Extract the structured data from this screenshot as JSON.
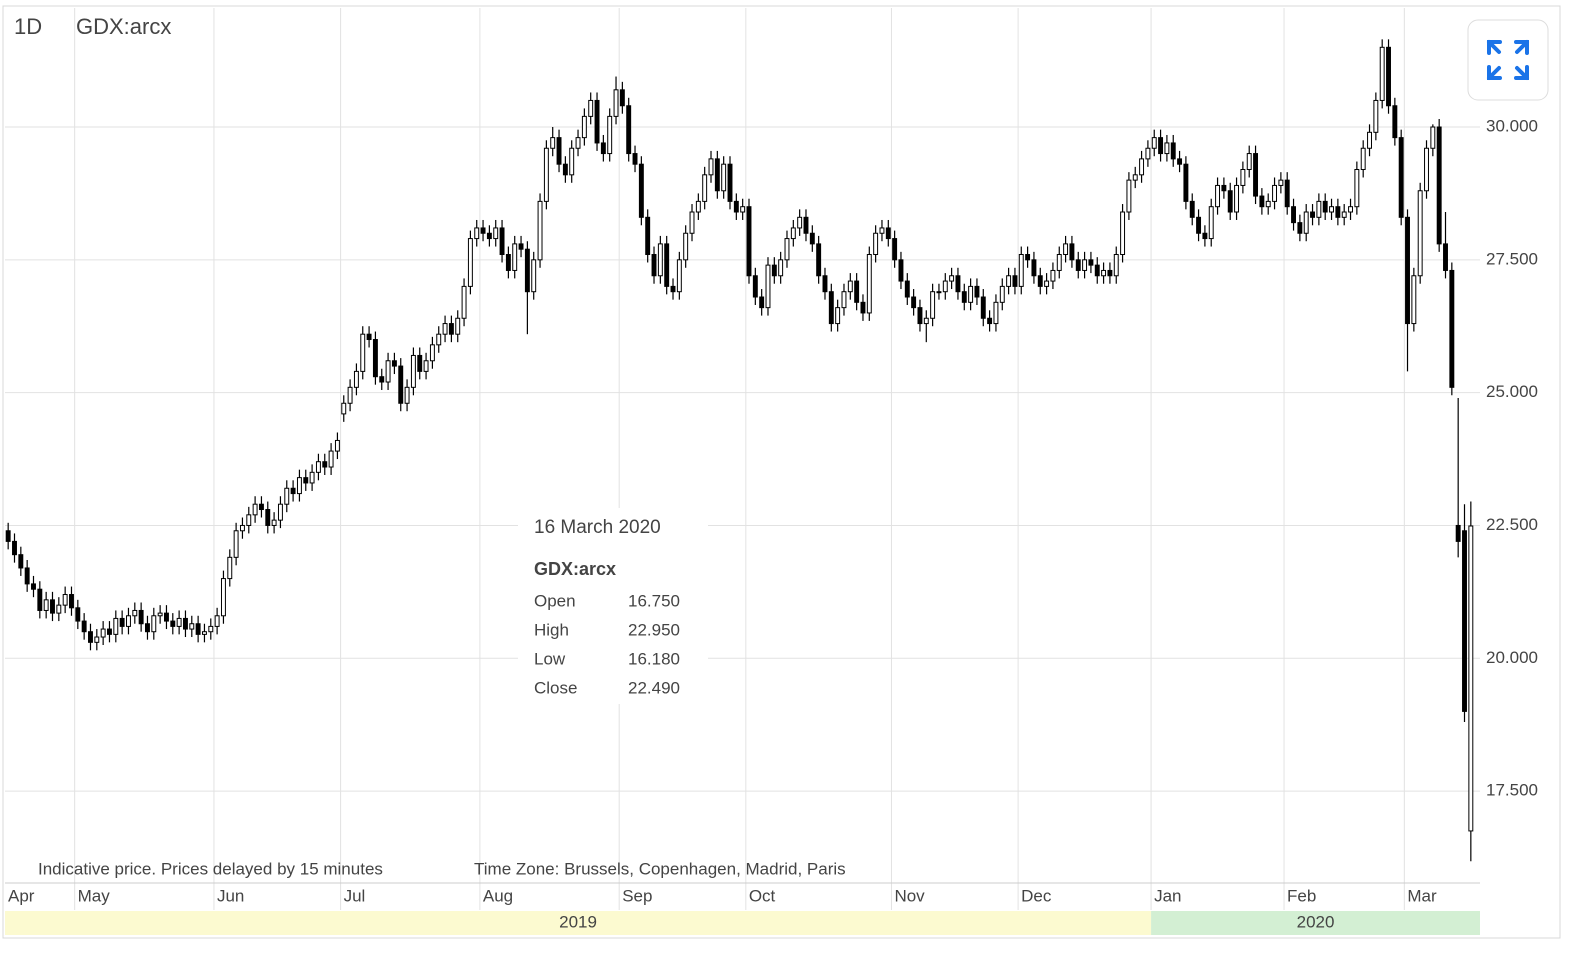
{
  "header": {
    "interval": "1D",
    "symbol": "GDX:arcx"
  },
  "notes": [
    "Indicative price. Prices delayed by 15 minutes",
    "Time Zone: Brussels, Copenhagen, Madrid, Paris"
  ],
  "tooltip": {
    "date": "16 March 2020",
    "symbol": "GDX:arcx",
    "rows": [
      {
        "label": "Open",
        "value": "16.750"
      },
      {
        "label": "High",
        "value": "22.950"
      },
      {
        "label": "Low",
        "value": "16.180"
      },
      {
        "label": "Close",
        "value": "22.490"
      }
    ]
  },
  "chart_data": {
    "type": "candlestick",
    "name": "GDX:arcx",
    "up_color": "#ffffff",
    "down_color": "#000000",
    "wick_color": "#000000",
    "ylim": [
      15.77,
      32.24
    ],
    "yticks": [
      {
        "value": 17.5,
        "label": "17.500"
      },
      {
        "value": 20,
        "label": "20.000"
      },
      {
        "value": 22.5,
        "label": "22.500"
      },
      {
        "value": 25,
        "label": "25.000"
      },
      {
        "value": 27.5,
        "label": "27.500"
      },
      {
        "value": 30,
        "label": "30.000"
      }
    ],
    "xticks": [
      {
        "value": 0,
        "label": "Apr"
      },
      {
        "value": 11,
        "label": "May"
      },
      {
        "value": 33,
        "label": "Jun"
      },
      {
        "value": 53,
        "label": "Jul"
      },
      {
        "value": 75,
        "label": "Aug"
      },
      {
        "value": 97,
        "label": "Sep"
      },
      {
        "value": 117,
        "label": "Oct"
      },
      {
        "value": 140,
        "label": "Nov"
      },
      {
        "value": 160,
        "label": "Dec"
      },
      {
        "value": 181,
        "label": "Jan"
      },
      {
        "value": 202,
        "label": "Feb"
      },
      {
        "value": 221,
        "label": "Mar"
      }
    ],
    "years": [
      {
        "value": 0,
        "label": "2019"
      },
      {
        "value": 181,
        "label": "2020"
      }
    ],
    "grid": true,
    "ohlc": [
      [
        22.4,
        22.55,
        22.05,
        22.2
      ],
      [
        22.2,
        22.35,
        21.8,
        21.95
      ],
      [
        21.95,
        22.1,
        21.55,
        21.7
      ],
      [
        21.7,
        21.85,
        21.25,
        21.4
      ],
      [
        21.4,
        21.55,
        21.15,
        21.3
      ],
      [
        21.3,
        21.45,
        20.75,
        20.9
      ],
      [
        20.9,
        21.25,
        20.75,
        21.1
      ],
      [
        21.1,
        21.25,
        20.7,
        20.85
      ],
      [
        20.85,
        21.15,
        20.7,
        21.0
      ],
      [
        21.0,
        21.35,
        20.85,
        21.2
      ],
      [
        21.2,
        21.35,
        20.8,
        20.95
      ],
      [
        20.95,
        21.1,
        20.55,
        20.7
      ],
      [
        20.7,
        20.85,
        20.35,
        20.5
      ],
      [
        20.5,
        20.65,
        20.15,
        20.3
      ],
      [
        20.3,
        20.55,
        20.15,
        20.4
      ],
      [
        20.4,
        20.7,
        20.25,
        20.55
      ],
      [
        20.55,
        20.7,
        20.3,
        20.45
      ],
      [
        20.45,
        20.9,
        20.3,
        20.75
      ],
      [
        20.75,
        20.9,
        20.45,
        20.6
      ],
      [
        20.6,
        20.95,
        20.45,
        20.8
      ],
      [
        20.8,
        21.05,
        20.65,
        20.9
      ],
      [
        20.9,
        21.05,
        20.5,
        20.65
      ],
      [
        20.65,
        20.8,
        20.35,
        20.5
      ],
      [
        20.5,
        20.95,
        20.35,
        20.8
      ],
      [
        20.8,
        21.0,
        20.65,
        20.85
      ],
      [
        20.85,
        21.0,
        20.55,
        20.7
      ],
      [
        20.7,
        20.85,
        20.45,
        20.6
      ],
      [
        20.6,
        20.9,
        20.45,
        20.75
      ],
      [
        20.75,
        20.9,
        20.4,
        20.55
      ],
      [
        20.55,
        20.8,
        20.4,
        20.65
      ],
      [
        20.65,
        20.8,
        20.3,
        20.45
      ],
      [
        20.45,
        20.65,
        20.3,
        20.5
      ],
      [
        20.5,
        20.75,
        20.35,
        20.6
      ],
      [
        20.6,
        20.95,
        20.45,
        20.8
      ],
      [
        20.8,
        21.65,
        20.65,
        21.5
      ],
      [
        21.5,
        22.05,
        21.35,
        21.9
      ],
      [
        21.9,
        22.55,
        21.75,
        22.4
      ],
      [
        22.4,
        22.65,
        22.25,
        22.5
      ],
      [
        22.5,
        22.85,
        22.35,
        22.7
      ],
      [
        22.7,
        23.05,
        22.55,
        22.9
      ],
      [
        22.9,
        23.05,
        22.65,
        22.8
      ],
      [
        22.8,
        22.95,
        22.35,
        22.5
      ],
      [
        22.5,
        22.75,
        22.35,
        22.6
      ],
      [
        22.6,
        23.05,
        22.45,
        22.9
      ],
      [
        22.9,
        23.35,
        22.75,
        23.2
      ],
      [
        23.2,
        23.35,
        22.95,
        23.1
      ],
      [
        23.1,
        23.55,
        22.95,
        23.4
      ],
      [
        23.4,
        23.55,
        23.15,
        23.3
      ],
      [
        23.3,
        23.65,
        23.15,
        23.5
      ],
      [
        23.5,
        23.85,
        23.35,
        23.7
      ],
      [
        23.7,
        23.85,
        23.45,
        23.6
      ],
      [
        23.6,
        24.05,
        23.45,
        23.9
      ],
      [
        23.9,
        24.25,
        23.75,
        24.1
      ],
      [
        24.6,
        24.95,
        24.45,
        24.8
      ],
      [
        24.8,
        25.25,
        24.65,
        25.1
      ],
      [
        25.1,
        25.55,
        24.95,
        25.4
      ],
      [
        25.4,
        26.25,
        25.25,
        26.1
      ],
      [
        26.1,
        26.25,
        25.85,
        26.0
      ],
      [
        26.0,
        26.15,
        25.15,
        25.3
      ],
      [
        25.3,
        25.45,
        25.05,
        25.2
      ],
      [
        25.2,
        25.75,
        25.05,
        25.6
      ],
      [
        25.6,
        25.75,
        25.35,
        25.5
      ],
      [
        25.5,
        25.65,
        24.65,
        24.8
      ],
      [
        24.8,
        25.25,
        24.65,
        25.1
      ],
      [
        25.1,
        25.85,
        24.95,
        25.7
      ],
      [
        25.7,
        25.85,
        25.25,
        25.4
      ],
      [
        25.4,
        25.75,
        25.25,
        25.6
      ],
      [
        25.6,
        26.05,
        25.45,
        25.9
      ],
      [
        25.9,
        26.25,
        25.75,
        26.1
      ],
      [
        26.1,
        26.45,
        25.95,
        26.3
      ],
      [
        26.3,
        26.45,
        25.95,
        26.1
      ],
      [
        26.1,
        26.55,
        25.95,
        26.4
      ],
      [
        26.4,
        27.15,
        26.25,
        27.0
      ],
      [
        27.0,
        28.05,
        26.85,
        27.9
      ],
      [
        27.9,
        28.25,
        27.75,
        28.1
      ],
      [
        28.1,
        28.25,
        27.85,
        28.0
      ],
      [
        28.0,
        28.15,
        27.75,
        27.9
      ],
      [
        27.9,
        28.25,
        27.75,
        28.1
      ],
      [
        28.1,
        28.25,
        27.45,
        27.6
      ],
      [
        27.6,
        27.75,
        27.15,
        27.3
      ],
      [
        27.3,
        27.95,
        27.15,
        27.8
      ],
      [
        27.8,
        27.95,
        27.55,
        27.7
      ],
      [
        27.7,
        27.85,
        26.1,
        26.9
      ],
      [
        26.9,
        27.65,
        26.75,
        27.5
      ],
      [
        27.5,
        28.75,
        27.35,
        28.6
      ],
      [
        28.6,
        29.75,
        28.45,
        29.6
      ],
      [
        29.6,
        30.0,
        29.45,
        29.8
      ],
      [
        29.8,
        29.95,
        29.15,
        29.3
      ],
      [
        29.3,
        29.45,
        28.95,
        29.1
      ],
      [
        29.1,
        29.75,
        28.95,
        29.6
      ],
      [
        29.6,
        29.95,
        29.45,
        29.8
      ],
      [
        29.8,
        30.35,
        29.65,
        30.2
      ],
      [
        30.2,
        30.65,
        30.05,
        30.5
      ],
      [
        30.5,
        30.65,
        29.55,
        29.7
      ],
      [
        29.7,
        29.85,
        29.35,
        29.5
      ],
      [
        29.5,
        30.35,
        29.35,
        30.2
      ],
      [
        30.2,
        30.95,
        30.05,
        30.7
      ],
      [
        30.7,
        30.85,
        30.25,
        30.4
      ],
      [
        30.4,
        30.55,
        29.35,
        29.5
      ],
      [
        29.5,
        29.65,
        29.15,
        29.3
      ],
      [
        29.3,
        29.45,
        28.15,
        28.3
      ],
      [
        28.3,
        28.45,
        27.45,
        27.6
      ],
      [
        27.6,
        27.75,
        27.05,
        27.2
      ],
      [
        27.2,
        27.95,
        27.05,
        27.8
      ],
      [
        27.8,
        27.95,
        26.85,
        27.0
      ],
      [
        27.0,
        27.15,
        26.75,
        26.9
      ],
      [
        26.9,
        27.65,
        26.75,
        27.5
      ],
      [
        27.5,
        28.15,
        27.35,
        28.0
      ],
      [
        28.0,
        28.55,
        27.85,
        28.4
      ],
      [
        28.4,
        28.75,
        28.25,
        28.6
      ],
      [
        28.6,
        29.25,
        28.45,
        29.1
      ],
      [
        29.1,
        29.55,
        28.95,
        29.4
      ],
      [
        29.4,
        29.55,
        28.65,
        28.8
      ],
      [
        28.8,
        29.45,
        28.65,
        29.3
      ],
      [
        29.3,
        29.45,
        28.45,
        28.6
      ],
      [
        28.6,
        28.75,
        28.25,
        28.4
      ],
      [
        28.4,
        28.65,
        28.25,
        28.5
      ],
      [
        28.5,
        28.65,
        27.05,
        27.2
      ],
      [
        27.2,
        27.35,
        26.65,
        26.8
      ],
      [
        26.8,
        26.95,
        26.45,
        26.6
      ],
      [
        26.6,
        27.55,
        26.45,
        27.4
      ],
      [
        27.4,
        27.55,
        27.05,
        27.2
      ],
      [
        27.2,
        27.65,
        27.05,
        27.5
      ],
      [
        27.5,
        28.05,
        27.35,
        27.9
      ],
      [
        27.9,
        28.25,
        27.75,
        28.1
      ],
      [
        28.1,
        28.45,
        27.95,
        28.3
      ],
      [
        28.3,
        28.45,
        27.85,
        28.0
      ],
      [
        28.0,
        28.15,
        27.65,
        27.8
      ],
      [
        27.8,
        27.95,
        27.05,
        27.2
      ],
      [
        27.2,
        27.35,
        26.75,
        26.9
      ],
      [
        26.9,
        27.05,
        26.15,
        26.3
      ],
      [
        26.3,
        26.75,
        26.15,
        26.6
      ],
      [
        26.6,
        27.05,
        26.45,
        26.9
      ],
      [
        26.9,
        27.25,
        26.75,
        27.1
      ],
      [
        27.1,
        27.25,
        26.55,
        26.7
      ],
      [
        26.7,
        26.85,
        26.35,
        26.5
      ],
      [
        26.5,
        27.75,
        26.35,
        27.6
      ],
      [
        27.6,
        28.15,
        27.45,
        28.0
      ],
      [
        28.0,
        28.25,
        27.85,
        28.1
      ],
      [
        28.1,
        28.25,
        27.75,
        27.9
      ],
      [
        27.9,
        28.05,
        27.35,
        27.5
      ],
      [
        27.5,
        27.65,
        26.95,
        27.1
      ],
      [
        27.1,
        27.25,
        26.65,
        26.8
      ],
      [
        26.8,
        26.95,
        26.45,
        26.6
      ],
      [
        26.6,
        26.75,
        26.15,
        26.3
      ],
      [
        26.3,
        26.55,
        25.95,
        26.4
      ],
      [
        26.4,
        27.05,
        26.25,
        26.9
      ],
      [
        26.9,
        27.05,
        26.75,
        26.9
      ],
      [
        26.9,
        27.25,
        26.75,
        27.1
      ],
      [
        27.1,
        27.35,
        26.95,
        27.2
      ],
      [
        27.2,
        27.35,
        26.75,
        26.9
      ],
      [
        26.9,
        27.05,
        26.55,
        26.7
      ],
      [
        26.7,
        27.15,
        26.55,
        27.0
      ],
      [
        27.0,
        27.15,
        26.65,
        26.8
      ],
      [
        26.8,
        26.95,
        26.25,
        26.4
      ],
      [
        26.4,
        26.55,
        26.15,
        26.3
      ],
      [
        26.3,
        26.85,
        26.15,
        26.7
      ],
      [
        26.7,
        27.15,
        26.55,
        27.0
      ],
      [
        27.0,
        27.35,
        26.85,
        27.2
      ],
      [
        27.2,
        27.35,
        26.85,
        27.0
      ],
      [
        27.0,
        27.75,
        26.85,
        27.6
      ],
      [
        27.6,
        27.75,
        27.35,
        27.5
      ],
      [
        27.5,
        27.65,
        27.05,
        27.2
      ],
      [
        27.2,
        27.35,
        26.85,
        27.0
      ],
      [
        27.0,
        27.25,
        26.85,
        27.1
      ],
      [
        27.1,
        27.45,
        26.95,
        27.3
      ],
      [
        27.3,
        27.75,
        27.15,
        27.6
      ],
      [
        27.6,
        27.95,
        27.45,
        27.8
      ],
      [
        27.8,
        27.95,
        27.35,
        27.5
      ],
      [
        27.5,
        27.65,
        27.15,
        27.3
      ],
      [
        27.3,
        27.65,
        27.15,
        27.5
      ],
      [
        27.5,
        27.65,
        27.25,
        27.4
      ],
      [
        27.4,
        27.55,
        27.05,
        27.2
      ],
      [
        27.2,
        27.45,
        27.05,
        27.3
      ],
      [
        27.3,
        27.45,
        27.05,
        27.2
      ],
      [
        27.2,
        27.75,
        27.05,
        27.6
      ],
      [
        27.6,
        28.55,
        27.45,
        28.4
      ],
      [
        28.4,
        29.15,
        28.25,
        29.0
      ],
      [
        29.0,
        29.25,
        28.85,
        29.1
      ],
      [
        29.1,
        29.55,
        28.95,
        29.4
      ],
      [
        29.4,
        29.75,
        29.25,
        29.6
      ],
      [
        29.6,
        29.95,
        29.45,
        29.8
      ],
      [
        29.8,
        29.95,
        29.35,
        29.5
      ],
      [
        29.5,
        29.85,
        29.35,
        29.7
      ],
      [
        29.7,
        29.85,
        29.25,
        29.4
      ],
      [
        29.4,
        29.55,
        29.15,
        29.3
      ],
      [
        29.3,
        29.45,
        28.45,
        28.6
      ],
      [
        28.6,
        28.75,
        28.15,
        28.3
      ],
      [
        28.3,
        28.45,
        27.85,
        28.0
      ],
      [
        28.0,
        28.15,
        27.75,
        27.9
      ],
      [
        27.9,
        28.65,
        27.75,
        28.5
      ],
      [
        28.5,
        29.05,
        28.35,
        28.9
      ],
      [
        28.9,
        29.05,
        28.65,
        28.8
      ],
      [
        28.8,
        28.95,
        28.25,
        28.4
      ],
      [
        28.4,
        29.05,
        28.25,
        28.9
      ],
      [
        28.9,
        29.35,
        28.75,
        29.2
      ],
      [
        29.2,
        29.65,
        29.05,
        29.5
      ],
      [
        29.5,
        29.65,
        28.55,
        28.7
      ],
      [
        28.7,
        28.85,
        28.35,
        28.5
      ],
      [
        28.5,
        28.75,
        28.35,
        28.6
      ],
      [
        28.6,
        29.05,
        28.45,
        28.9
      ],
      [
        28.9,
        29.15,
        28.75,
        29.0
      ],
      [
        29.0,
        29.15,
        28.35,
        28.5
      ],
      [
        28.5,
        28.65,
        28.05,
        28.2
      ],
      [
        28.2,
        28.35,
        27.85,
        28.0
      ],
      [
        28.0,
        28.55,
        27.85,
        28.4
      ],
      [
        28.4,
        28.55,
        28.15,
        28.3
      ],
      [
        28.3,
        28.75,
        28.15,
        28.6
      ],
      [
        28.6,
        28.75,
        28.25,
        28.4
      ],
      [
        28.4,
        28.65,
        28.25,
        28.5
      ],
      [
        28.5,
        28.65,
        28.15,
        28.3
      ],
      [
        28.3,
        28.55,
        28.15,
        28.4
      ],
      [
        28.4,
        28.65,
        28.25,
        28.5
      ],
      [
        28.5,
        29.35,
        28.35,
        29.2
      ],
      [
        29.2,
        29.75,
        29.05,
        29.6
      ],
      [
        29.6,
        30.05,
        29.45,
        29.9
      ],
      [
        29.9,
        30.65,
        29.75,
        30.5
      ],
      [
        30.5,
        31.65,
        30.35,
        31.5
      ],
      [
        31.5,
        31.65,
        30.25,
        30.4
      ],
      [
        30.4,
        30.55,
        29.65,
        29.8
      ],
      [
        29.8,
        29.95,
        28.15,
        28.3
      ],
      [
        28.3,
        28.45,
        25.4,
        26.3
      ],
      [
        26.3,
        27.35,
        26.15,
        27.2
      ],
      [
        27.2,
        28.95,
        27.05,
        28.8
      ],
      [
        28.8,
        29.75,
        28.65,
        29.6
      ],
      [
        29.6,
        30.05,
        29.45,
        30.0
      ],
      [
        30.0,
        30.15,
        27.65,
        27.8
      ],
      [
        27.8,
        28.4,
        27.15,
        27.3
      ],
      [
        27.3,
        27.45,
        24.95,
        25.1
      ],
      [
        22.5,
        24.9,
        21.9,
        22.2
      ],
      [
        22.4,
        22.9,
        18.8,
        19.0
      ],
      [
        16.75,
        22.95,
        16.18,
        22.49
      ]
    ]
  }
}
